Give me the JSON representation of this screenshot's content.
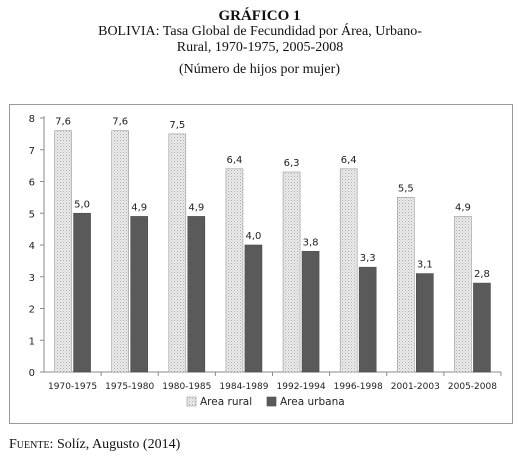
{
  "header": {
    "label": "GRÁFICO 1",
    "title": "BOLIVIA: Tasa Global de Fecundidad por Área, Urbano-Rural, 1970-1975, 2005-2008",
    "subtitle": "(Número de hijos por mujer)"
  },
  "source": {
    "prefix": "Fuente:",
    "text": "Solíz, Augusto (2014)"
  },
  "chart_data": {
    "type": "bar",
    "categories": [
      "1970-1975",
      "1975-1980",
      "1980-1985",
      "1984-1989",
      "1992-1994",
      "1996-1998",
      "2001-2003",
      "2005-2008"
    ],
    "series": [
      {
        "name": "Area  rural",
        "values": [
          7.6,
          7.6,
          7.5,
          6.4,
          6.3,
          6.4,
          5.5,
          4.9
        ],
        "labels": [
          "7,6",
          "7,6",
          "7,5",
          "6,4",
          "6,3",
          "6,4",
          "5,5",
          "4,9"
        ],
        "color": "#e6e6e6"
      },
      {
        "name": "Area urbana",
        "values": [
          5.0,
          4.9,
          4.9,
          4.0,
          3.8,
          3.3,
          3.1,
          2.8
        ],
        "labels": [
          "5,0",
          "4,9",
          "4,9",
          "4,0",
          "3,8",
          "3,3",
          "3,1",
          "2,8"
        ],
        "color": "#5a5a5a"
      }
    ],
    "ylim": [
      0,
      8
    ],
    "yticks": [
      0,
      1,
      2,
      3,
      4,
      5,
      6,
      7,
      8
    ],
    "grid": false,
    "legend": "bottom"
  }
}
